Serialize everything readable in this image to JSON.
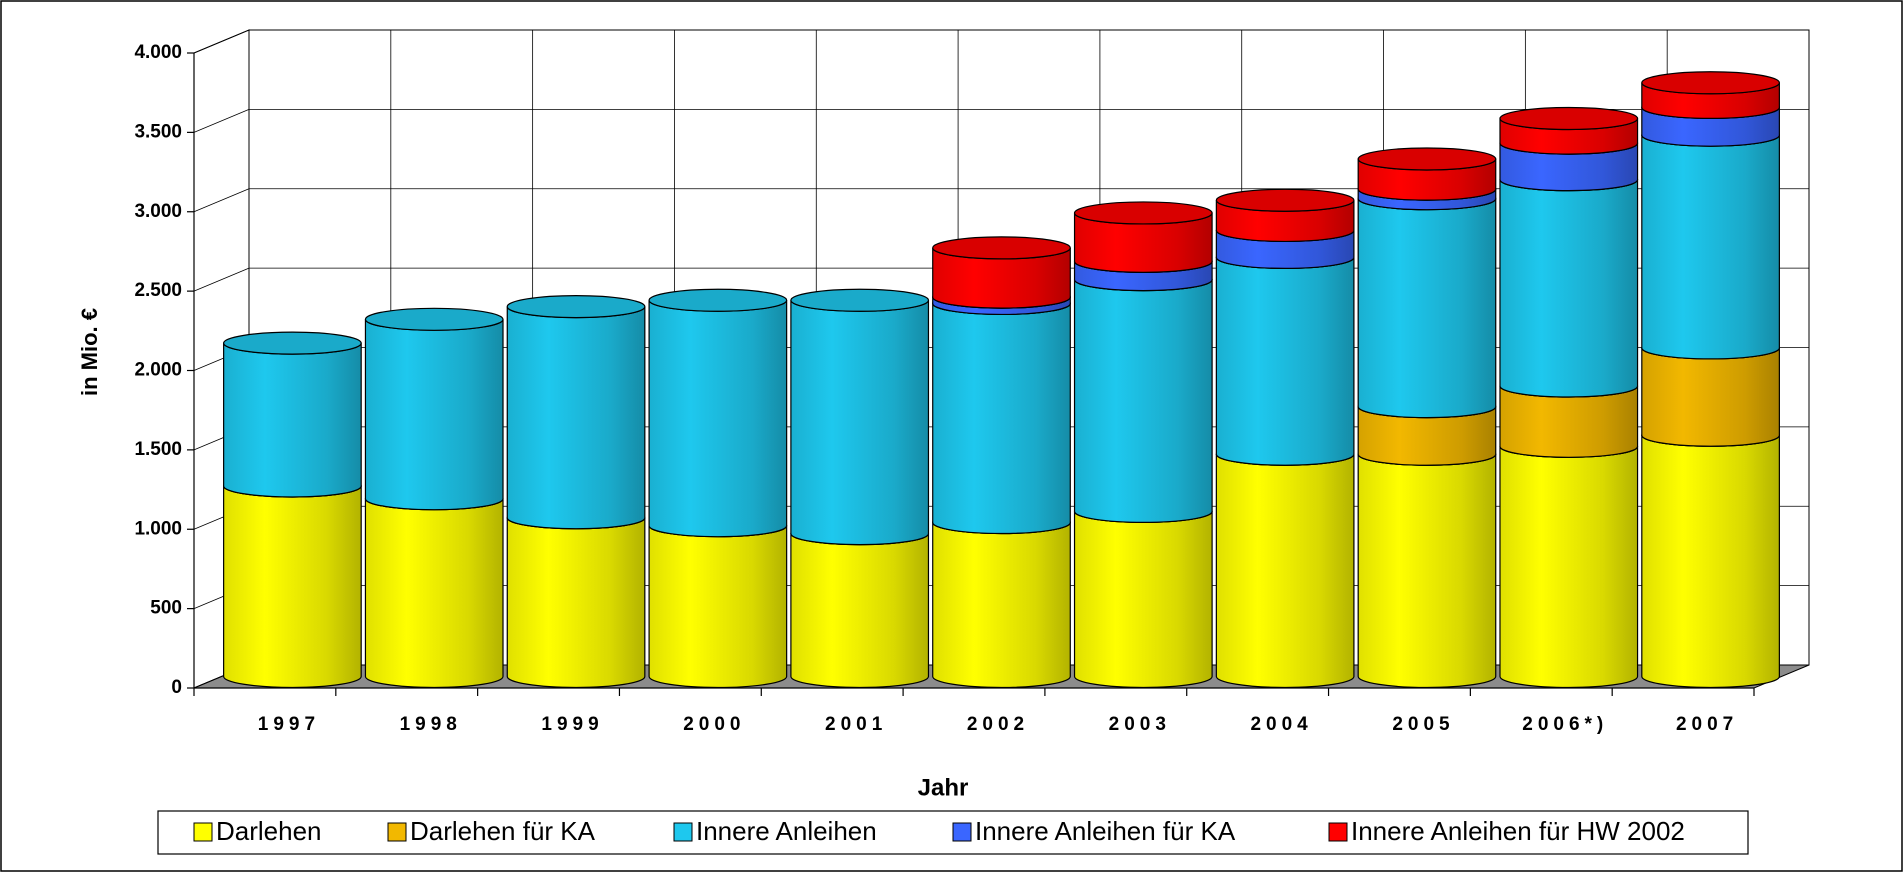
{
  "chart_data": {
    "type": "stacked-cylinder",
    "y_label": "in Mio. €",
    "x_label": "Jahr",
    "categories": [
      "1997",
      "1998",
      "1999",
      "2000",
      "2001",
      "2002",
      "2003",
      "2004",
      "2005",
      "2006*)",
      "2007"
    ],
    "series": [
      {
        "name": "Darlehen",
        "color": "#ffff00",
        "values": [
          1200,
          1120,
          1000,
          950,
          900,
          970,
          1040,
          1400,
          1400,
          1450,
          1520
        ]
      },
      {
        "name": "Darlehen für KA",
        "color": "#f2b800",
        "values": [
          0,
          0,
          0,
          0,
          0,
          0,
          0,
          0,
          300,
          380,
          550
        ]
      },
      {
        "name": "Innere Anleihen",
        "color": "#1ec8ee",
        "values": [
          900,
          1130,
          1330,
          1420,
          1470,
          1380,
          1460,
          1240,
          1310,
          1300,
          1340
        ]
      },
      {
        "name": "Innere Anleihen für KA",
        "color": "#3a66ff",
        "values": [
          0,
          0,
          0,
          0,
          0,
          40,
          115,
          170,
          60,
          230,
          175
        ]
      },
      {
        "name": "Innere Anleihen für HW 2002",
        "color": "#ff0000",
        "values": [
          0,
          0,
          0,
          0,
          0,
          310,
          305,
          190,
          190,
          155,
          155
        ]
      }
    ],
    "ylim": [
      0,
      4000
    ],
    "yticks": [
      0,
      500,
      {
        "value": 1000,
        "label": "1.000"
      },
      {
        "value": 1500,
        "label": "1.500"
      },
      {
        "value": 2000,
        "label": "2.000"
      },
      {
        "value": 2500,
        "label": "2.500"
      },
      {
        "value": 3000,
        "label": "3.000"
      },
      {
        "value": 3500,
        "label": "3.500"
      },
      {
        "value": 4000,
        "label": "4.000"
      }
    ],
    "grid": true,
    "legend": "bottom"
  }
}
